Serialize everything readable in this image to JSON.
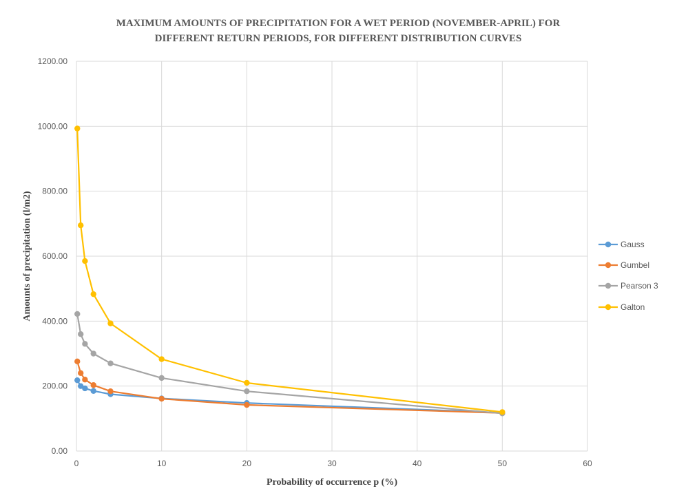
{
  "chart_data": {
    "type": "line",
    "title": [
      "MAXIMUM AMOUNTS OF PRECIPITATION FOR A WET  PERIOD (NOVEMBER-APRIL) FOR",
      "DIFFERENT RETURN PERIODS, FOR DIFFERENT DISTRIBUTION CURVES"
    ],
    "xlabel": "Probability  of occurrence p (%)",
    "ylabel": "Amounts of precipitation (l/m2)",
    "xlim": [
      0,
      60
    ],
    "ylim": [
      0,
      1200
    ],
    "xticks": [
      0,
      10,
      20,
      30,
      40,
      50,
      60
    ],
    "yticks": [
      "0.00",
      "200.00",
      "400.00",
      "600.00",
      "800.00",
      "1000.00",
      "1200.00"
    ],
    "grid": true,
    "legend_position": "right",
    "x": [
      0.1,
      0.5,
      1,
      2,
      4,
      10,
      20,
      50
    ],
    "series": [
      {
        "name": "Gauss",
        "color": "#5b9bd5",
        "values": [
          218,
          200,
          193,
          185,
          175,
          162,
          148,
          118
        ]
      },
      {
        "name": "Gumbel",
        "color": "#ed7d31",
        "values": [
          276,
          240,
          220,
          203,
          184,
          161,
          142,
          117
        ]
      },
      {
        "name": "Pearson 3",
        "color": "#a5a5a5",
        "values": [
          422,
          360,
          330,
          300,
          270,
          225,
          184,
          116
        ]
      },
      {
        "name": "Galton",
        "color": "#ffc000",
        "values": [
          993,
          695,
          585,
          483,
          393,
          283,
          210,
          120
        ]
      }
    ]
  }
}
